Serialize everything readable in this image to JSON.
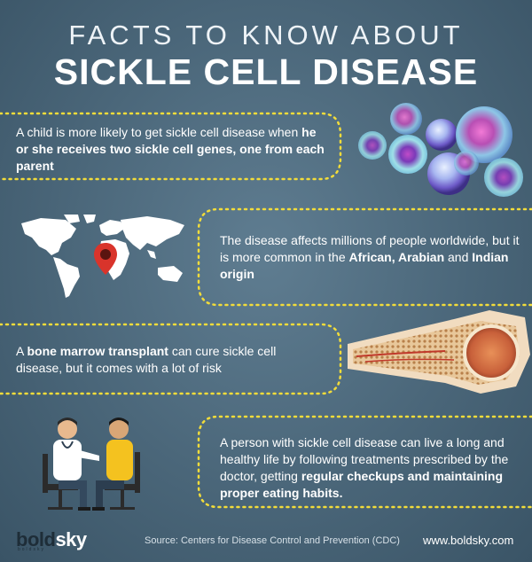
{
  "title": {
    "line1": "FACTS TO KNOW ABOUT",
    "line2": "SICKLE CELL DISEASE"
  },
  "facts": [
    {
      "plain1": "A child is more likely to get sickle cell disease when ",
      "bold1": "he or she receives two sickle cell genes, one from each parent",
      "plain2": "",
      "bold2": "",
      "plain3": "",
      "bold3": "",
      "plain4": ""
    },
    {
      "plain1": "The disease affects millions of people worldwide, but it is more common in the ",
      "bold1": "African, Arabian",
      "plain2": " and ",
      "bold2": "Indian origin",
      "plain3": "",
      "bold3": "",
      "plain4": ""
    },
    {
      "plain1": "A ",
      "bold1": "bone marrow transplant",
      "plain2": " can cure sickle cell disease, but it comes with a lot of risk",
      "bold2": "",
      "plain3": "",
      "bold3": "",
      "plain4": ""
    },
    {
      "plain1": "A person with sickle cell disease can live a long and healthy life by following treatments prescribed by the doctor, getting ",
      "bold1": "regular checkups and maintaining proper eating habits.",
      "plain2": "",
      "bold2": "",
      "plain3": "",
      "bold3": "",
      "plain4": ""
    }
  ],
  "footer": {
    "source": "Source: Centers for Disease Control and Prevention (CDC)",
    "url": "www.boldsky.com",
    "logo_bold": "bold",
    "logo_rest": "sky",
    "logo_sub": "boldsky"
  },
  "colors": {
    "dots": "#f2dc3a",
    "background": "#4a6679",
    "pin": "#d9342b"
  },
  "icons": [
    "blood-cells-image",
    "world-map-icon",
    "location-pin-icon",
    "bone-cross-section-image",
    "doctor-patient-illustration"
  ]
}
